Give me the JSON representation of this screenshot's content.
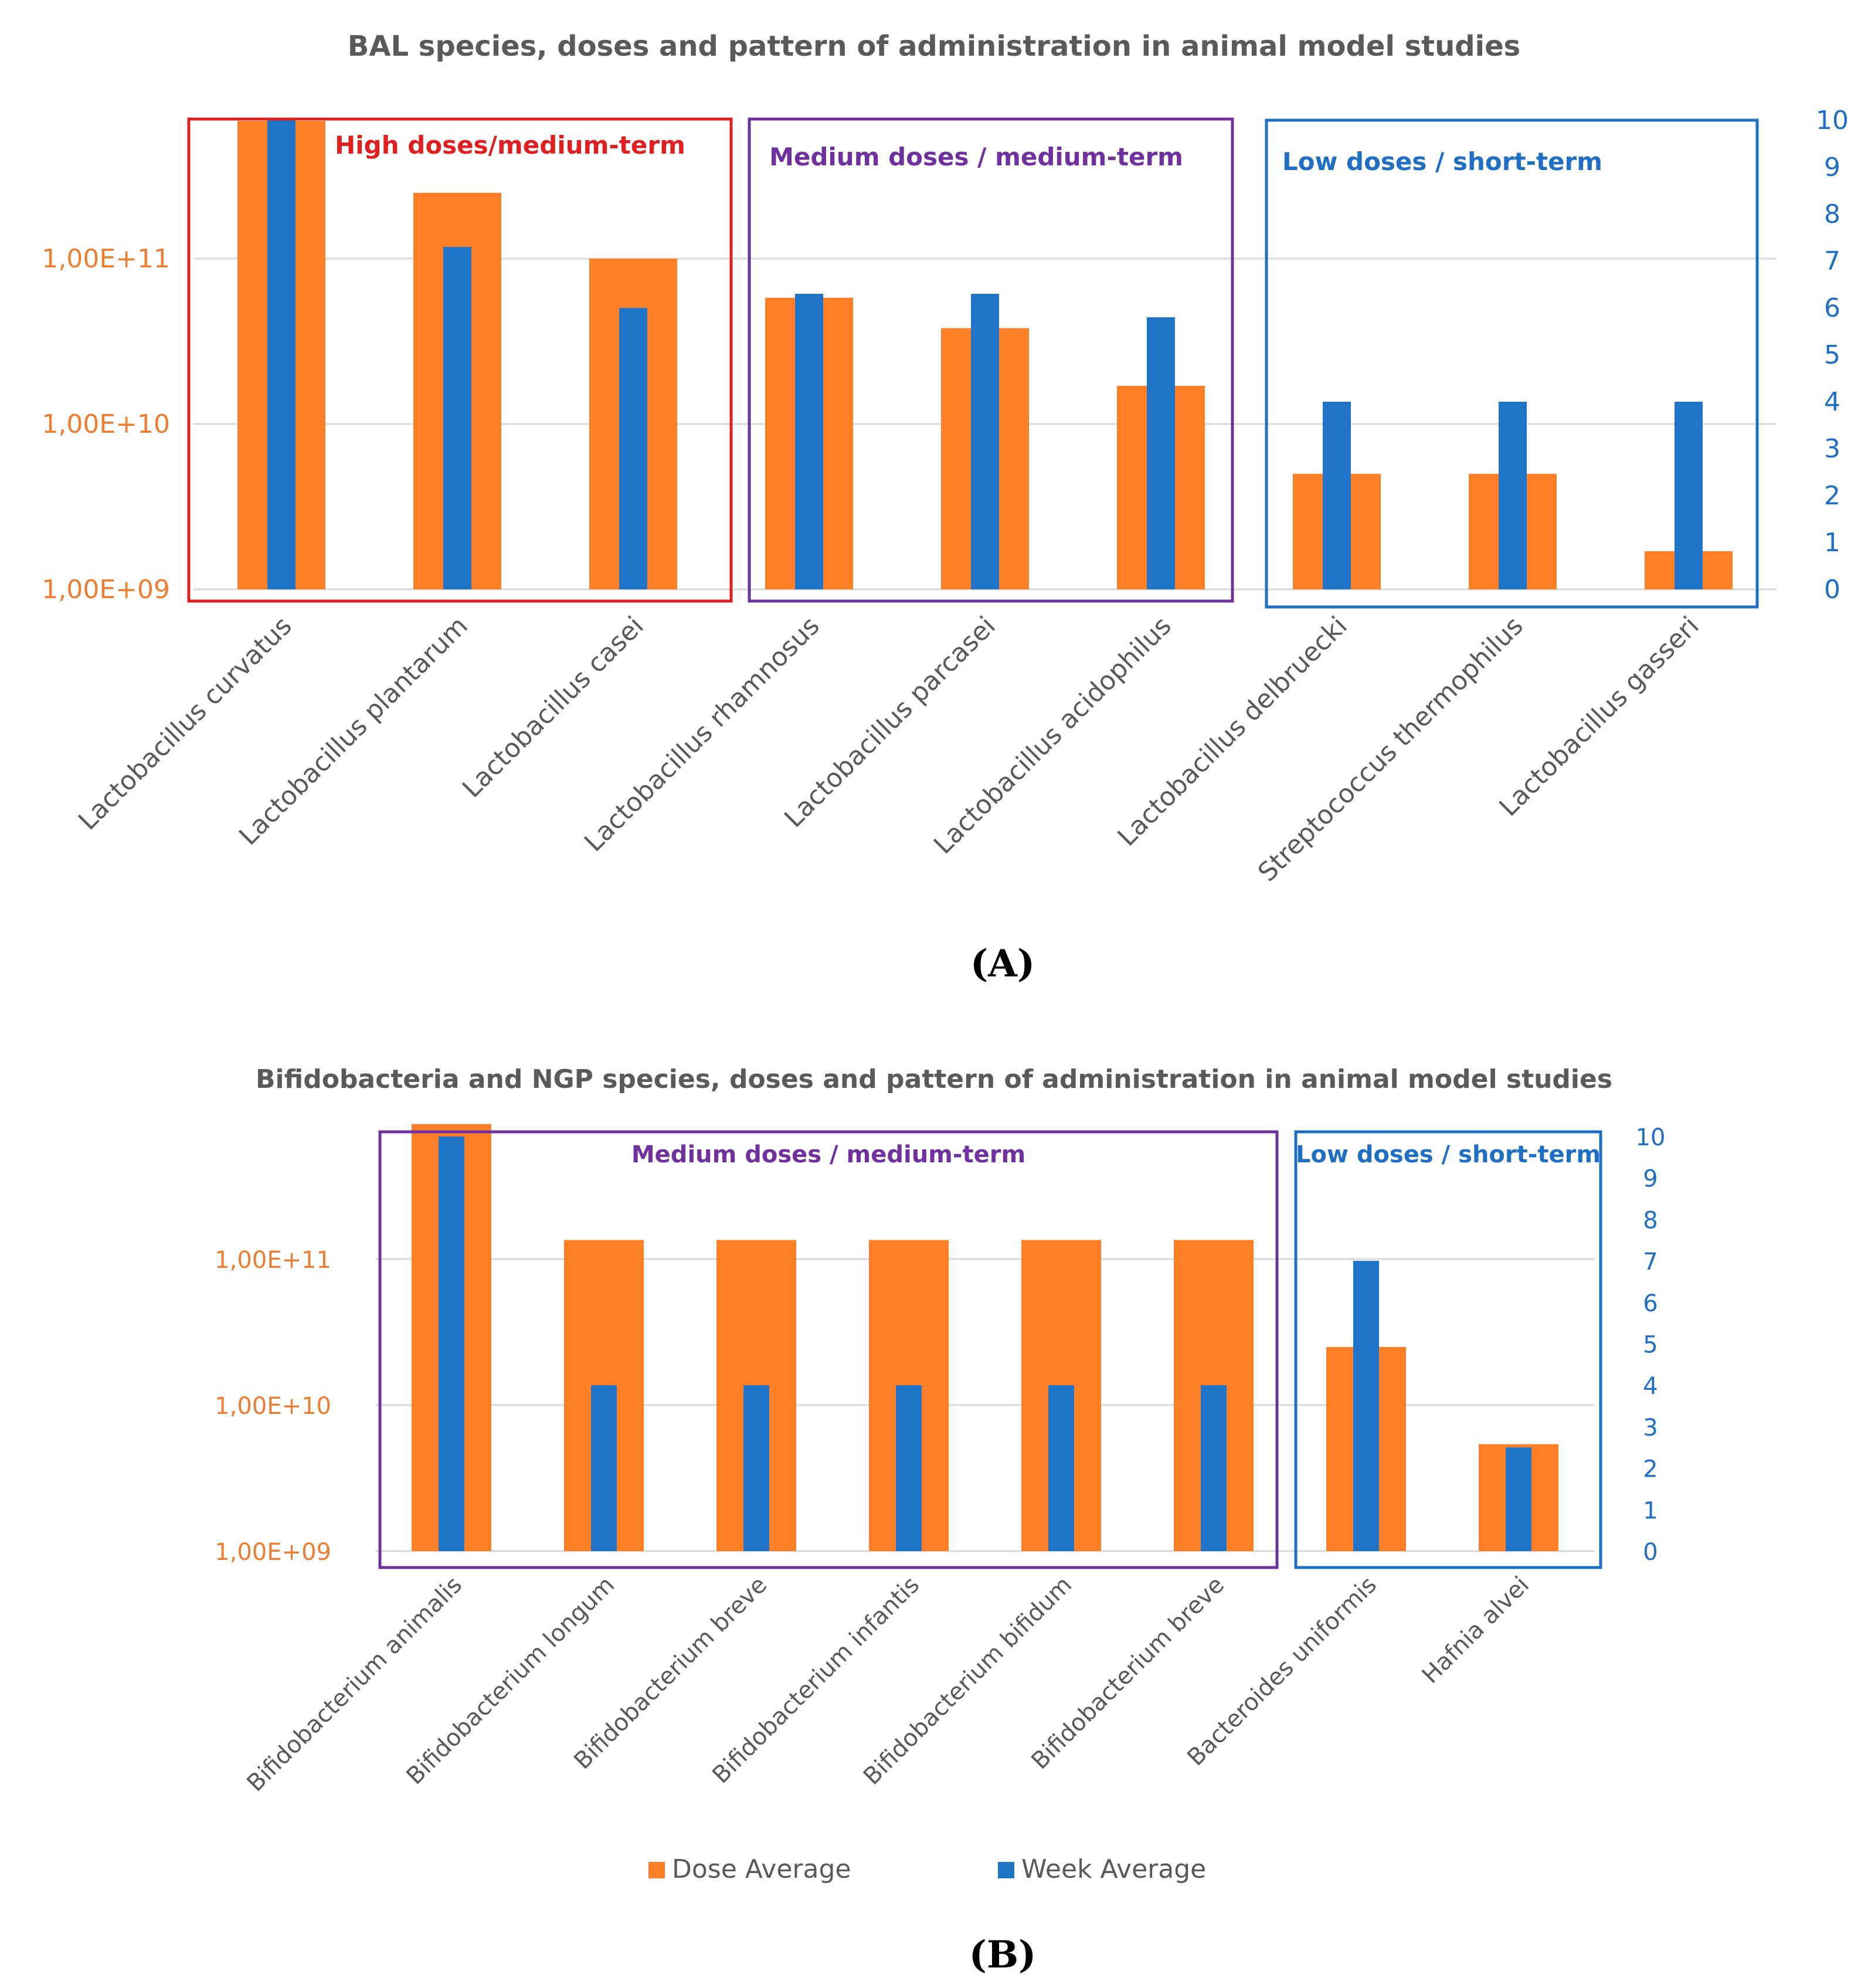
{
  "colors": {
    "dose": "#ff7f27",
    "week": "#1f74c8",
    "left_axis_text": "#ed7d31",
    "right_axis_text": "#1f6fc5",
    "title_text": "#5a5a5a",
    "gridline": "#d9d9d9",
    "group_high": "#e02020",
    "group_medium": "#7030a0",
    "group_low": "#1f6fc5"
  },
  "legend": {
    "dose_label": "Dose Average",
    "week_label": "Week Average"
  },
  "chart_data": [
    {
      "type": "bar",
      "panel_label": "A",
      "title": "BAL species, doses and pattern of administration in animal model studies",
      "xlabel": "",
      "ylabel_left": "",
      "ylabel_right": "",
      "left_axis": {
        "scale": "log",
        "ylim": [
          1000000000,
          680000000000
        ],
        "ticks": [
          "1,00E+09",
          "1,00E+10",
          "1,00E+11"
        ],
        "tick_values": [
          1000000000,
          10000000000,
          100000000000
        ]
      },
      "right_axis": {
        "scale": "linear",
        "ylim": [
          0,
          10
        ],
        "ticks": [
          "0",
          "1",
          "2",
          "3",
          "4",
          "5",
          "6",
          "7",
          "8",
          "9",
          "10"
        ]
      },
      "grid": true,
      "categories": [
        "Lactobacillus curvatus",
        "Lactobacillus plantarum",
        "Lactobacillus casei",
        "Lactobacillus rhamnosus",
        "Lactobacillus parcasei",
        "Lactobacillus acidophilus",
        "Lactobacillus delbruecki",
        "Streptococcus thermophilus",
        "Lactobacillus gasseri"
      ],
      "series": [
        {
          "name": "Dose Average",
          "axis": "left",
          "values": [
            680000000000,
            250000000000,
            100000000000,
            58000000000,
            38000000000,
            17000000000,
            5000000000,
            5000000000,
            1700000000
          ]
        },
        {
          "name": "Week Average",
          "axis": "right",
          "values": [
            10,
            7.3,
            6,
            6.3,
            6.3,
            5.8,
            4,
            4,
            4
          ]
        }
      ],
      "groups": [
        {
          "label": "High doses/medium-term",
          "color_key": "group_high",
          "from": 0,
          "to": 2
        },
        {
          "label": "Medium doses  / medium-term",
          "color_key": "group_medium",
          "from": 3,
          "to": 5
        },
        {
          "label": "Low doses  / short-term",
          "color_key": "group_low",
          "from": 6,
          "to": 8
        }
      ]
    },
    {
      "type": "bar",
      "panel_label": "B",
      "title": "Bifidobacteria and NGP species, doses and pattern of administration in animal model studies",
      "xlabel": "",
      "ylabel_left": "",
      "ylabel_right": "",
      "left_axis": {
        "scale": "log",
        "ylim": [
          1000000000,
          840000000000
        ],
        "ticks": [
          "1,00E+09",
          "1,00E+10",
          "1,00E+11"
        ],
        "tick_values": [
          1000000000,
          10000000000,
          100000000000
        ]
      },
      "right_axis": {
        "scale": "linear",
        "ylim": [
          0,
          10
        ],
        "ticks": [
          "0",
          "1",
          "2",
          "3",
          "4",
          "5",
          "6",
          "7",
          "8",
          "9",
          "10"
        ]
      },
      "grid": true,
      "categories": [
        "Bifidobacterium animalis",
        "Bifidobacterium longum",
        "Bifidobacterium breve",
        "Bifidobacterium infantis",
        "Bifidobacterium bifidum",
        "Bifidobacterium breve",
        "Bacteroides uniformis",
        "Hafnia alvei"
      ],
      "series": [
        {
          "name": "Dose Average",
          "axis": "left",
          "values": [
            840000000000,
            135000000000,
            135000000000,
            135000000000,
            135000000000,
            135000000000,
            25000000000,
            5400000000
          ]
        },
        {
          "name": "Week Average",
          "axis": "right",
          "values": [
            10,
            4,
            4,
            4,
            4,
            4,
            7,
            2.5
          ]
        }
      ],
      "groups": [
        {
          "label": "Medium doses / medium-term",
          "color_key": "group_medium",
          "from": 0,
          "to": 5
        },
        {
          "label": "Low doses / short-term",
          "color_key": "group_low",
          "from": 6,
          "to": 7
        }
      ]
    }
  ]
}
